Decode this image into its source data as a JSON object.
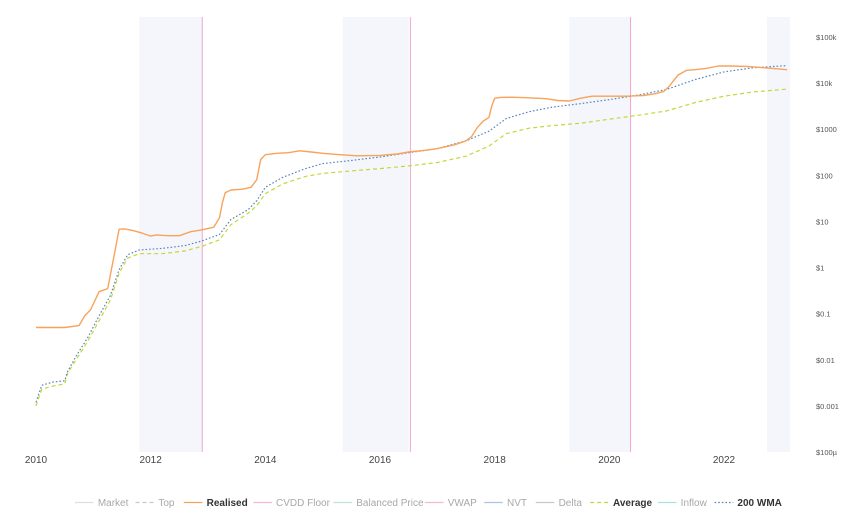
{
  "chart_data": {
    "type": "line",
    "title": "",
    "xlabel": "",
    "ylabel": "",
    "yscale": "log",
    "x_range": [
      2010.0,
      2023.35
    ],
    "y_range": [
      0.0001,
      200000
    ],
    "x_ticks": [
      {
        "value": 2010,
        "label": "2010"
      },
      {
        "value": 2012,
        "label": "2012"
      },
      {
        "value": 2014,
        "label": "2014"
      },
      {
        "value": 2016,
        "label": "2016"
      },
      {
        "value": 2018,
        "label": "2018"
      },
      {
        "value": 2020,
        "label": "2020"
      },
      {
        "value": 2022,
        "label": "2022"
      }
    ],
    "y_ticks": [
      {
        "value": 100000,
        "label": "$100k"
      },
      {
        "value": 10000,
        "label": "$10k"
      },
      {
        "value": 1000,
        "label": "$1000"
      },
      {
        "value": 100,
        "label": "$100"
      },
      {
        "value": 10,
        "label": "$10"
      },
      {
        "value": 1,
        "label": "$1"
      },
      {
        "value": 0.1,
        "label": "$0.1"
      },
      {
        "value": 0.01,
        "label": "$0.01"
      },
      {
        "value": 0.001,
        "label": "$0.001"
      },
      {
        "value": 0.0001,
        "label": "$100µ"
      }
    ],
    "shaded_regions": [
      [
        2011.8,
        2012.9
      ],
      [
        2015.35,
        2016.5
      ],
      [
        2019.3,
        2020.38
      ],
      [
        2022.75,
        2023.35
      ]
    ],
    "halving_lines": [
      2012.9,
      2016.53,
      2020.37
    ],
    "legend_position": "bottom",
    "legend": [
      {
        "label": "Market",
        "style": "solid",
        "color": "#dedede",
        "emphasis": false
      },
      {
        "label": "Top",
        "style": "dashed",
        "color": "#c9c9c9",
        "emphasis": false
      },
      {
        "label": "Realised",
        "style": "solid",
        "color": "#f7a35c",
        "emphasis": true
      },
      {
        "label": "CVDD Floor",
        "style": "solid",
        "color": "#f2b8d6",
        "emphasis": false
      },
      {
        "label": "Balanced Price",
        "style": "solid",
        "color": "#bfe3d8",
        "emphasis": false
      },
      {
        "label": "VWAP",
        "style": "solid",
        "color": "#f2b8d6",
        "emphasis": false
      },
      {
        "label": "NVT",
        "style": "solid",
        "color": "#a9c6e8",
        "emphasis": false
      },
      {
        "label": "Delta",
        "style": "solid",
        "color": "#c9c9c9",
        "emphasis": false
      },
      {
        "label": "Average",
        "style": "dashed",
        "color": "#c6d63a",
        "emphasis": true
      },
      {
        "label": "Inflow",
        "style": "solid",
        "color": "#a8e0e3",
        "emphasis": false
      },
      {
        "label": "200 WMA",
        "style": "dotted",
        "color": "#5b86b8",
        "emphasis": true
      }
    ],
    "series": [
      {
        "name": "Realised",
        "color": "#f7a35c",
        "style": "solid",
        "points": [
          [
            2010.0,
            0.05
          ],
          [
            2010.5,
            0.05
          ],
          [
            2010.75,
            0.055
          ],
          [
            2010.85,
            0.09
          ],
          [
            2010.95,
            0.12
          ],
          [
            2011.1,
            0.3
          ],
          [
            2011.25,
            0.35
          ],
          [
            2011.35,
            1.5
          ],
          [
            2011.45,
            6.8
          ],
          [
            2011.55,
            6.9
          ],
          [
            2011.7,
            6.3
          ],
          [
            2011.85,
            5.6
          ],
          [
            2012.0,
            4.8
          ],
          [
            2012.1,
            5.1
          ],
          [
            2012.3,
            4.9
          ],
          [
            2012.5,
            4.9
          ],
          [
            2012.7,
            6.0
          ],
          [
            2012.9,
            6.6
          ],
          [
            2013.1,
            7.5
          ],
          [
            2013.2,
            12
          ],
          [
            2013.25,
            25
          ],
          [
            2013.3,
            42
          ],
          [
            2013.4,
            48
          ],
          [
            2013.6,
            50
          ],
          [
            2013.75,
            55
          ],
          [
            2013.85,
            80
          ],
          [
            2013.92,
            220
          ],
          [
            2014.0,
            280
          ],
          [
            2014.2,
            300
          ],
          [
            2014.4,
            310
          ],
          [
            2014.6,
            340
          ],
          [
            2014.8,
            320
          ],
          [
            2015.0,
            300
          ],
          [
            2015.3,
            280
          ],
          [
            2015.6,
            265
          ],
          [
            2016.0,
            270
          ],
          [
            2016.3,
            290
          ],
          [
            2016.5,
            320
          ],
          [
            2016.8,
            350
          ],
          [
            2017.0,
            380
          ],
          [
            2017.3,
            460
          ],
          [
            2017.5,
            560
          ],
          [
            2017.6,
            700
          ],
          [
            2017.7,
            1100
          ],
          [
            2017.8,
            1500
          ],
          [
            2017.9,
            1800
          ],
          [
            2017.95,
            3200
          ],
          [
            2018.0,
            4700
          ],
          [
            2018.1,
            4900
          ],
          [
            2018.3,
            4950
          ],
          [
            2018.6,
            4800
          ],
          [
            2018.9,
            4600
          ],
          [
            2019.1,
            4200
          ],
          [
            2019.3,
            4100
          ],
          [
            2019.5,
            4700
          ],
          [
            2019.7,
            5200
          ],
          [
            2020.0,
            5200
          ],
          [
            2020.3,
            5200
          ],
          [
            2020.6,
            5400
          ],
          [
            2020.8,
            5900
          ],
          [
            2020.95,
            6600
          ],
          [
            2021.05,
            8600
          ],
          [
            2021.1,
            10500
          ],
          [
            2021.2,
            15000
          ],
          [
            2021.35,
            19000
          ],
          [
            2021.5,
            19500
          ],
          [
            2021.7,
            21000
          ],
          [
            2021.9,
            23500
          ],
          [
            2022.1,
            23500
          ],
          [
            2022.4,
            23000
          ],
          [
            2022.7,
            21500
          ],
          [
            2022.9,
            20500
          ],
          [
            2023.1,
            19500
          ]
        ]
      },
      {
        "name": "200 WMA",
        "color": "#5b86b8",
        "style": "dotted",
        "points": [
          [
            2010.0,
            0.0012
          ],
          [
            2010.1,
            0.0028
          ],
          [
            2010.3,
            0.0033
          ],
          [
            2010.5,
            0.0035
          ],
          [
            2010.55,
            0.0055
          ],
          [
            2010.7,
            0.012
          ],
          [
            2010.9,
            0.03
          ],
          [
            2011.1,
            0.09
          ],
          [
            2011.3,
            0.25
          ],
          [
            2011.45,
            0.9
          ],
          [
            2011.6,
            1.9
          ],
          [
            2011.8,
            2.4
          ],
          [
            2012.2,
            2.6
          ],
          [
            2012.6,
            3.0
          ],
          [
            2012.9,
            3.8
          ],
          [
            2013.2,
            5.2
          ],
          [
            2013.4,
            11
          ],
          [
            2013.7,
            18
          ],
          [
            2013.85,
            28
          ],
          [
            2014.0,
            55
          ],
          [
            2014.3,
            90
          ],
          [
            2014.7,
            140
          ],
          [
            2015.0,
            180
          ],
          [
            2015.5,
            210
          ],
          [
            2016.0,
            250
          ],
          [
            2016.5,
            310
          ],
          [
            2017.0,
            380
          ],
          [
            2017.5,
            560
          ],
          [
            2017.9,
            900
          ],
          [
            2018.2,
            1700
          ],
          [
            2018.6,
            2400
          ],
          [
            2019.0,
            3000
          ],
          [
            2019.5,
            3600
          ],
          [
            2020.0,
            4400
          ],
          [
            2020.5,
            5500
          ],
          [
            2021.0,
            7300
          ],
          [
            2021.5,
            12000
          ],
          [
            2022.0,
            17500
          ],
          [
            2022.5,
            21500
          ],
          [
            2023.1,
            24000
          ]
        ]
      },
      {
        "name": "Average",
        "color": "#c6d63a",
        "style": "dashed",
        "points": [
          [
            2010.0,
            0.001
          ],
          [
            2010.1,
            0.0023
          ],
          [
            2010.3,
            0.0027
          ],
          [
            2010.5,
            0.003
          ],
          [
            2010.55,
            0.005
          ],
          [
            2010.7,
            0.01
          ],
          [
            2010.9,
            0.025
          ],
          [
            2011.1,
            0.07
          ],
          [
            2011.3,
            0.2
          ],
          [
            2011.45,
            0.75
          ],
          [
            2011.6,
            1.6
          ],
          [
            2011.8,
            2.0
          ],
          [
            2012.2,
            2.0
          ],
          [
            2012.6,
            2.3
          ],
          [
            2012.9,
            2.9
          ],
          [
            2013.2,
            4.0
          ],
          [
            2013.4,
            8.5
          ],
          [
            2013.7,
            15
          ],
          [
            2013.85,
            22
          ],
          [
            2014.0,
            40
          ],
          [
            2014.3,
            65
          ],
          [
            2014.7,
            95
          ],
          [
            2015.0,
            110
          ],
          [
            2015.5,
            125
          ],
          [
            2016.0,
            140
          ],
          [
            2016.5,
            160
          ],
          [
            2017.0,
            190
          ],
          [
            2017.5,
            260
          ],
          [
            2017.9,
            430
          ],
          [
            2018.2,
            800
          ],
          [
            2018.6,
            1050
          ],
          [
            2019.0,
            1200
          ],
          [
            2019.5,
            1350
          ],
          [
            2020.0,
            1650
          ],
          [
            2020.5,
            2000
          ],
          [
            2021.0,
            2500
          ],
          [
            2021.5,
            3800
          ],
          [
            2022.0,
            5200
          ],
          [
            2022.5,
            6400
          ],
          [
            2023.1,
            7400
          ]
        ]
      }
    ]
  }
}
